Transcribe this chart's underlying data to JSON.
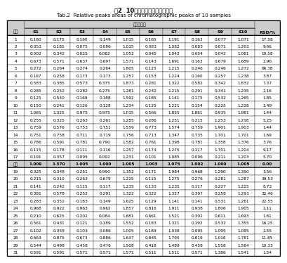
{
  "title_line1": "表2  10批样品共有峰相对峰面积",
  "title_line2": "Tab.2  Relative peaks areas of chromatographic peaks of 10 samples",
  "col_header_group": "共有峰面积",
  "columns": [
    "峰号",
    "S1",
    "S2",
    "S3",
    "S4",
    "S5",
    "S6",
    "S7",
    "S8",
    "S9",
    "S10",
    "RSD/%"
  ],
  "rows": [
    [
      "1",
      "0.160",
      "0.175",
      "0.160",
      "0.149",
      "1.015",
      "0.165",
      "1.191",
      "0.163",
      "0.077",
      "1.071",
      "17.58"
    ],
    [
      "2",
      "0.053",
      "0.185",
      "0.075",
      "0.086",
      "1.035",
      "0.083",
      "1.082",
      "0.083",
      "0.071",
      "1.203",
      "9.66"
    ],
    [
      "3",
      "0.002",
      "0.342",
      "0.025",
      "0.082",
      "1.052",
      "0.045",
      "1.042",
      "0.054",
      "0.042",
      "1.061",
      "10.58"
    ],
    [
      "4",
      "0.673",
      "0.571",
      "0.637",
      "0.697",
      "1.571",
      "0.143",
      "1.691",
      "0.163",
      "0.679",
      "1.689",
      "2.96"
    ],
    [
      "5",
      "0.272",
      "0.264",
      "0.274",
      "0.264",
      "1.805",
      "0.125",
      "1.215",
      "0.246",
      "0.246",
      "1.272",
      "66.38"
    ],
    [
      "6",
      "0.167",
      "0.258",
      "0.173",
      "0.173",
      "1.257",
      "0.153",
      "1.224",
      "0.160",
      "0.257",
      "1.238",
      "3.87"
    ],
    [
      "7",
      "0.583",
      "0.385",
      "0.573",
      "0.375",
      "1.873",
      "0.281",
      "1.322",
      "0.582",
      "0.342",
      "1.832",
      "7.37"
    ],
    [
      "8",
      "0.285",
      "0.252",
      "0.282",
      "0.275",
      "1.281",
      "0.242",
      "1.215",
      "0.291",
      "0.341",
      "1.235",
      "2.16"
    ],
    [
      "9",
      "0.125",
      "0.540",
      "0.169",
      "0.188",
      "1.592",
      "0.185",
      "1.141",
      "0.175",
      "0.532",
      "1.265",
      "1.85"
    ],
    [
      "10",
      "0.150",
      "0.241",
      "0.126",
      "0.128",
      "1.234",
      "0.125",
      "1.221",
      "0.154",
      "0.225",
      "1.228",
      "2.49"
    ],
    [
      "11",
      "1.065",
      "1.325",
      "0.975",
      "0.975",
      "1.015",
      "0.566",
      "1.855",
      "1.861",
      "0.935",
      "1.981",
      "1.44"
    ],
    [
      "12",
      "0.255",
      "0.325",
      "0.263",
      "0.261",
      "1.285",
      "0.286",
      "1.251",
      "0.215",
      "1.253",
      "1.218",
      "5.25"
    ],
    [
      "13",
      "0.759",
      "0.576",
      "0.753",
      "0.751",
      "1.559",
      "0.773",
      "1.574",
      "0.759",
      "1.901",
      "1.903",
      "1.44"
    ],
    [
      "14",
      "0.751",
      "0.758",
      "0.711",
      "0.719",
      "1.756",
      "0.713",
      "1.347",
      "0.735",
      "1.701",
      "1.701",
      "1.69"
    ],
    [
      "15",
      "0.786",
      "0.591",
      "0.781",
      "0.790",
      "1.582",
      "0.761",
      "1.398",
      "0.781",
      "1.358",
      "1.376",
      "3.76"
    ],
    [
      "16",
      "0.115",
      "0.178",
      "0.111",
      "0.116",
      "1.257",
      "0.174",
      "1.275",
      "0.117",
      "1.701",
      "1.204",
      "9.17"
    ],
    [
      "17",
      "0.191",
      "0.357",
      "0.095",
      "0.092",
      "1.231",
      "0.101",
      "1.085",
      "0.096",
      "0.211",
      "1.203",
      "5.70"
    ],
    [
      "均值",
      "1.009",
      "1.370",
      "1.005",
      "1.000",
      "1.005",
      "1.003",
      "1.075",
      "1.002",
      "1.000",
      "1.005",
      "0.00"
    ],
    [
      "19",
      "0.325",
      "0.348",
      "0.251",
      "0.990",
      "1.352",
      "0.171",
      "1.984",
      "0.968",
      "1.290",
      "1.350",
      "3.56"
    ],
    [
      "20",
      "0.215",
      "0.310",
      "0.263",
      "0.679",
      "1.225",
      "0.115",
      "1.275",
      "0.276",
      "0.281",
      "1.287",
      "39.53"
    ],
    [
      "21",
      "0.141",
      "0.242",
      "0.115",
      "0.117",
      "1.235",
      "0.133",
      "1.235",
      "0.117",
      "0.227",
      "1.225",
      "8.73"
    ],
    [
      "22",
      "0.381",
      "0.578",
      "0.252",
      "0.291",
      "1.322",
      "0.322",
      "1.327",
      "0.307",
      "0.258",
      "1.293",
      "32.46"
    ],
    [
      "23",
      "0.283",
      "0.352",
      "0.183",
      "0.149",
      "1.625",
      "0.129",
      "1.141",
      "0.141",
      "0.531",
      "1.261",
      "22.55"
    ],
    [
      "24",
      "0.968",
      "0.922",
      "0.963",
      "0.962",
      "1.857",
      "0.816",
      "1.911",
      "0.938",
      "1.806",
      "1.905",
      "2.11"
    ],
    [
      "25",
      "0.210",
      "0.625",
      "0.202",
      "0.084",
      "1.681",
      "0.661",
      "1.521",
      "0.302",
      "0.611",
      "1.693",
      "1.61"
    ],
    [
      "26",
      "0.561",
      "0.431",
      "0.121",
      "0.189",
      "1.552",
      "0.183",
      "1.321",
      "0.192",
      "0.532",
      "1.355",
      "16.25"
    ],
    [
      "27",
      "0.102",
      "0.359",
      "0.103",
      "0.086",
      "1.005",
      "0.189",
      "1.038",
      "0.095",
      "1.095",
      "1.095",
      "2.55"
    ],
    [
      "28",
      "0.663",
      "0.875",
      "0.673",
      "0.886",
      "1.637",
      "0.845",
      "1.795",
      "0.819",
      "1.018",
      "1.781",
      "11.85"
    ],
    [
      "29",
      "0.544",
      "0.498",
      "0.458",
      "0.476",
      "1.508",
      "0.418",
      "1.489",
      "0.458",
      "1.558",
      "1.584",
      "10.33"
    ],
    [
      "31",
      "0.591",
      "0.591",
      "0.571",
      "0.571",
      "1.571",
      "0.511",
      "1.511",
      "0.571",
      "1.386",
      "1.541",
      "1.54"
    ]
  ],
  "bold_row_index": 17,
  "header_bg": "#cccccc",
  "table_border_color": "#333333",
  "font_size": 4.5,
  "title_font_size": 6.0
}
